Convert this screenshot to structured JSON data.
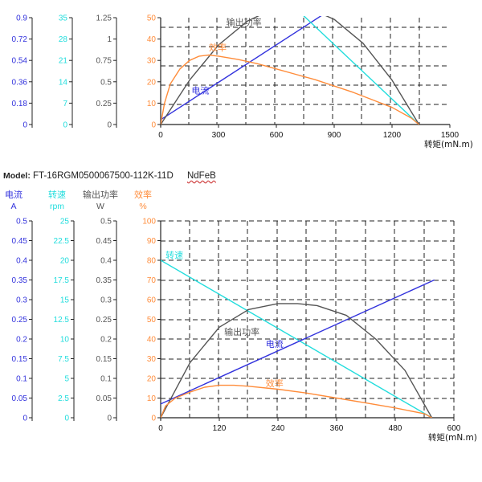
{
  "model": {
    "label": "Model:",
    "value": "FT-16RGM0500067500-112K-11D",
    "material": "NdFeB"
  },
  "colors": {
    "current": "#3333dd",
    "speed": "#22dddd",
    "power": "#555555",
    "efficiency": "#ff8c3a",
    "grid": "#222222",
    "axis": "#222222"
  },
  "chart_data": [
    {
      "type": "line",
      "title": "",
      "xlabel": "转矩(mN.m)",
      "xlim": [
        0,
        1500
      ],
      "xticks": [
        "0",
        "300",
        "600",
        "900",
        "1200",
        "1500"
      ],
      "grid": true,
      "axes": [
        {
          "key": "current",
          "ticks": [
            "0",
            "0.18",
            "0.36",
            "0.54",
            "0.72",
            "0.9"
          ],
          "range": [
            0,
            0.9
          ]
        },
        {
          "key": "speed",
          "ticks": [
            "0",
            "7",
            "14",
            "21",
            "28",
            "35"
          ],
          "range": [
            0,
            35
          ]
        },
        {
          "key": "power",
          "ticks": [
            "0",
            "0.25",
            "0.5",
            "0.75",
            "1",
            "1.25"
          ],
          "range": [
            0,
            1.25
          ]
        },
        {
          "key": "efficiency",
          "ticks": [
            "0",
            "10",
            "20",
            "30",
            "40",
            "50"
          ],
          "range": [
            0,
            50
          ]
        }
      ],
      "series": [
        {
          "name": "电流",
          "key": "current",
          "x": [
            0,
            1340
          ],
          "y": [
            0.04,
            1.45
          ]
        },
        {
          "name": "转速",
          "key": "speed",
          "x": [
            450,
            1340
          ],
          "y": [
            53,
            0
          ]
        },
        {
          "name": "输出功率",
          "key": "power",
          "x": [
            0,
            150,
            300,
            450,
            600,
            670,
            750,
            900,
            1050,
            1200,
            1340
          ],
          "y": [
            0,
            0.52,
            0.93,
            1.21,
            1.37,
            1.4,
            1.38,
            1.23,
            0.95,
            0.52,
            0
          ]
        },
        {
          "name": "效率",
          "key": "efficiency",
          "x": [
            0,
            20,
            50,
            100,
            150,
            200,
            250,
            300,
            400,
            500,
            600,
            700,
            800,
            900,
            1000,
            1100,
            1200,
            1300,
            1340
          ],
          "y": [
            0,
            10,
            19,
            26,
            30,
            32,
            32.5,
            32,
            30.5,
            28.5,
            26,
            23.5,
            21,
            18,
            15,
            11.5,
            8,
            3,
            0
          ]
        }
      ],
      "annotations": [
        {
          "text": "输出功率",
          "series": "power",
          "x": 340,
          "y": 46.5
        },
        {
          "text": "效率",
          "series": "efficiency",
          "x": 250,
          "y": 34.5
        },
        {
          "text": "电流",
          "series": "current",
          "x": 160,
          "y": 14.5
        }
      ]
    },
    {
      "type": "line",
      "title": "",
      "xlabel": "转矩(mN.m)",
      "xlim": [
        0,
        600
      ],
      "xticks": [
        "0",
        "120",
        "240",
        "360",
        "480",
        "600"
      ],
      "grid": true,
      "axes": [
        {
          "key": "current",
          "name": "电流",
          "unit": "A",
          "ticks": [
            "0",
            "0.05",
            "0.1",
            "0.15",
            "0.2",
            "0.25",
            "0.3",
            "0.35",
            "0.4",
            "0.45",
            "0.5"
          ],
          "range": [
            0,
            0.5
          ]
        },
        {
          "key": "speed",
          "name": "转速",
          "unit": "rpm",
          "ticks": [
            "0",
            "2.5",
            "5",
            "7.5",
            "10",
            "12.5",
            "15",
            "17.5",
            "20",
            "22.5",
            "25"
          ],
          "range": [
            0,
            25
          ]
        },
        {
          "key": "power",
          "name": "输出功率",
          "unit": "W",
          "ticks": [
            "0",
            "0.05",
            "0.1",
            "0.15",
            "0.2",
            "0.25",
            "0.3",
            "0.35",
            "0.4",
            "0.45",
            "0.5"
          ],
          "range": [
            0,
            0.5
          ]
        },
        {
          "key": "efficiency",
          "name": "效率",
          "unit": "%",
          "ticks": [
            "0",
            "10",
            "20",
            "30",
            "40",
            "50",
            "60",
            "70",
            "80",
            "90",
            "100"
          ],
          "range": [
            0,
            100
          ]
        }
      ],
      "series": [
        {
          "name": "转速",
          "key": "speed",
          "x": [
            0,
            555
          ],
          "y": [
            20,
            0
          ]
        },
        {
          "name": "电流",
          "key": "current",
          "x": [
            0,
            560
          ],
          "y": [
            0.035,
            0.35
          ]
        },
        {
          "name": "输出功率",
          "key": "power",
          "x": [
            0,
            60,
            120,
            180,
            240,
            280,
            320,
            380,
            440,
            500,
            555
          ],
          "y": [
            0,
            0.14,
            0.23,
            0.275,
            0.29,
            0.29,
            0.285,
            0.26,
            0.2,
            0.12,
            0
          ]
        },
        {
          "name": "效率",
          "key": "efficiency",
          "x": [
            0,
            10,
            30,
            60,
            90,
            120,
            150,
            180,
            240,
            300,
            360,
            420,
            480,
            540,
            555
          ],
          "y": [
            0,
            6,
            10,
            13,
            15.5,
            16.5,
            16.5,
            16,
            14.5,
            12.5,
            10,
            7.5,
            5,
            2,
            0
          ]
        }
      ],
      "annotations": [
        {
          "text": "转速",
          "series": "speed",
          "x": 10,
          "y": 81
        },
        {
          "text": "输出功率",
          "series": "power",
          "x": 130,
          "y": 42
        },
        {
          "text": "电流",
          "series": "current",
          "x": 215,
          "y": 36
        },
        {
          "text": "效率",
          "series": "efficiency",
          "x": 215,
          "y": 16
        }
      ]
    }
  ]
}
